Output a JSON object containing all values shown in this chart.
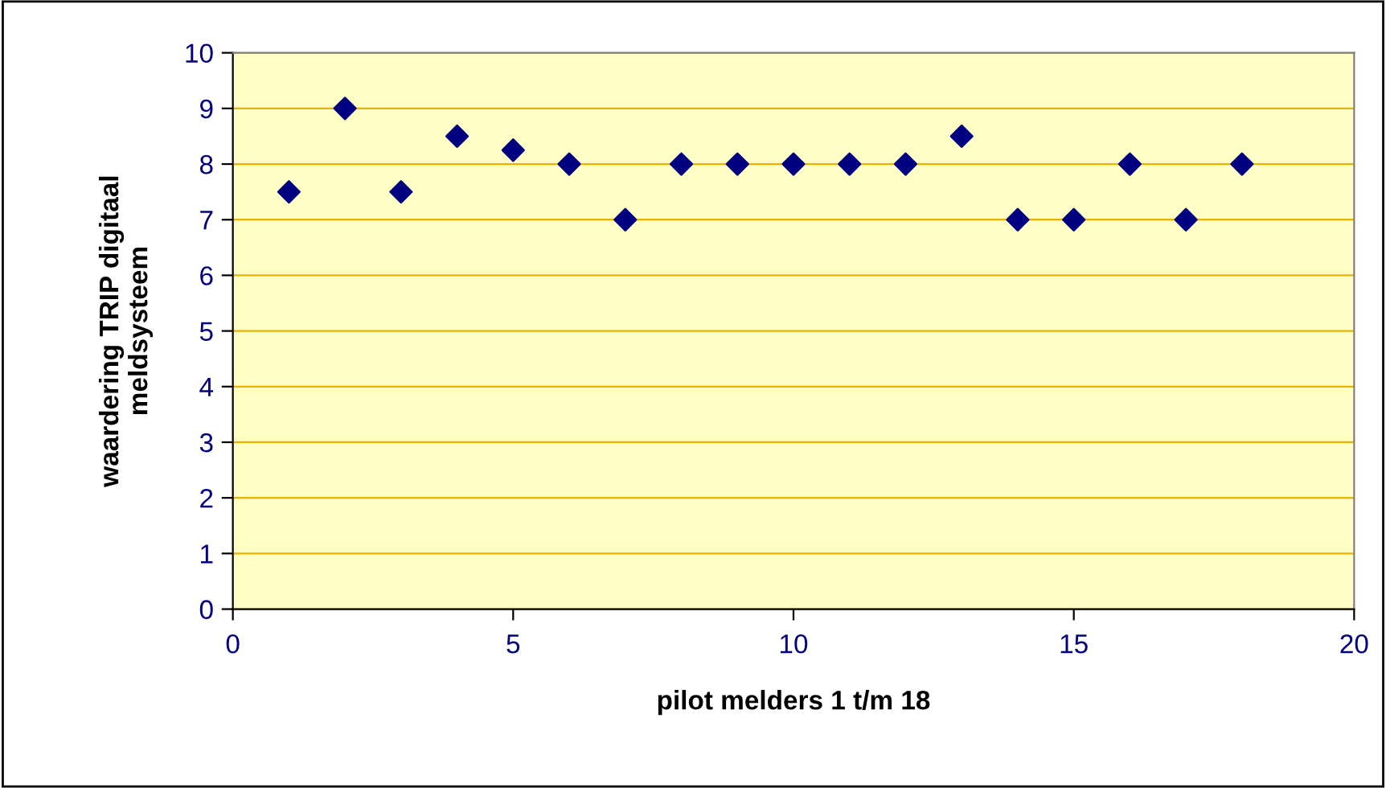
{
  "chart_data": {
    "type": "scatter",
    "xlabel": "pilot melders 1 t/m 18",
    "ylabel": "waardering TRIP digitaal\nmeldsysteem",
    "x": [
      1,
      2,
      3,
      4,
      5,
      6,
      7,
      8,
      9,
      10,
      11,
      12,
      13,
      14,
      15,
      16,
      17,
      18
    ],
    "series": [
      {
        "color": "#000080",
        "values": [
          7.5,
          9,
          7.5,
          8.5,
          8.25,
          8,
          7,
          8,
          8,
          8,
          8,
          8,
          8.5,
          7,
          7,
          8,
          7,
          8
        ]
      }
    ],
    "xlim": [
      0,
      20
    ],
    "xticks": [
      0,
      5,
      10,
      15,
      20
    ],
    "ylim": [
      0,
      10
    ],
    "yticks": [
      0,
      1,
      2,
      3,
      4,
      5,
      6,
      7,
      8,
      9,
      10
    ],
    "grid": "y",
    "marker": "diamond",
    "legend": false
  }
}
